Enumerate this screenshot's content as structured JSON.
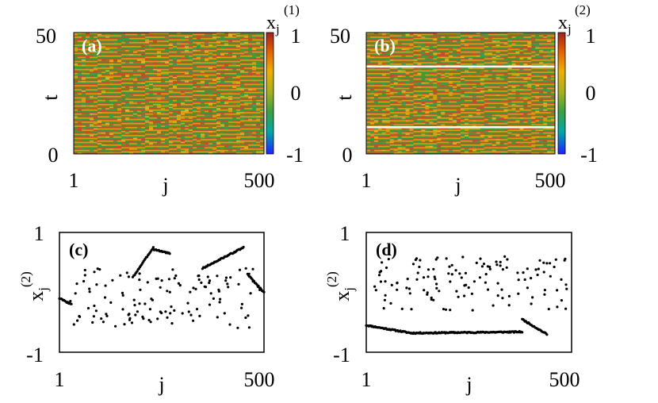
{
  "chart_data": [
    {
      "type": "heatmap",
      "panel_label": "(a)",
      "xlabel": "j",
      "ylabel": "t",
      "xlim": [
        1,
        500
      ],
      "ylim": [
        0,
        50
      ],
      "x_ticks": [
        "1",
        "500"
      ],
      "y_ticks": [
        "0",
        "50"
      ],
      "colorbar": {
        "label": "x",
        "subscript": "j",
        "superscript": "(1)",
        "range": [
          -1,
          1
        ],
        "ticks": [
          "1",
          "0",
          "-1"
        ],
        "colors": [
          "#2020ff",
          "#00a8a8",
          "#3ca040",
          "#a0b020",
          "#f0b000",
          "#e06000",
          "#a02020"
        ]
      },
      "white_lines_t": []
    },
    {
      "type": "heatmap",
      "panel_label": "(b)",
      "xlabel": "j",
      "ylabel": "t",
      "xlim": [
        1,
        500
      ],
      "ylim": [
        0,
        50
      ],
      "x_ticks": [
        "1",
        "500"
      ],
      "y_ticks": [
        "0",
        "50"
      ],
      "colorbar": {
        "label": "x",
        "subscript": "j",
        "superscript": "(2)",
        "range": [
          -1,
          1
        ],
        "ticks": [
          "1",
          "0",
          "-1"
        ],
        "colors": [
          "#2020ff",
          "#00a8a8",
          "#3ca040",
          "#a0b020",
          "#f0b000",
          "#e06000",
          "#a02020"
        ]
      },
      "white_lines_t": [
        11,
        36
      ]
    },
    {
      "type": "scatter",
      "panel_label": "(c)",
      "xlabel": "j",
      "ylabel": "x",
      "ylabel_sub": "j",
      "ylabel_sup": "(2)",
      "xlim": [
        1,
        500
      ],
      "ylim": [
        -1,
        1
      ],
      "x_ticks": [
        "1",
        "500"
      ],
      "y_ticks": [
        "1",
        "-1"
      ],
      "segments": [
        {
          "x0": 1,
          "x1": 30,
          "y0": -0.1,
          "y1": -0.2
        },
        {
          "x0": 180,
          "x1": 230,
          "y0": 0.25,
          "y1": 0.75
        },
        {
          "x0": 230,
          "x1": 270,
          "y0": 0.72,
          "y1": 0.65
        },
        {
          "x0": 350,
          "x1": 450,
          "y0": 0.4,
          "y1": 0.75
        },
        {
          "x0": 460,
          "x1": 500,
          "y0": 0.3,
          "y1": 0.0
        }
      ],
      "scatter_y_range": [
        -0.6,
        0.4
      ]
    },
    {
      "type": "scatter",
      "panel_label": "(d)",
      "xlabel": "j",
      "ylabel": "x",
      "ylabel_sub": "j",
      "ylabel_sup": "(2)",
      "xlim": [
        1,
        500
      ],
      "ylim": [
        -1,
        1
      ],
      "x_ticks": [
        "1",
        "500"
      ],
      "y_ticks": [
        "1",
        "-1"
      ],
      "segments": [
        {
          "x0": 1,
          "x1": 110,
          "y0": -0.55,
          "y1": -0.68
        },
        {
          "x0": 110,
          "x1": 380,
          "y0": -0.68,
          "y1": -0.66
        },
        {
          "x0": 380,
          "x1": 440,
          "y0": -0.45,
          "y1": -0.7
        }
      ],
      "scatter_y_range": [
        -0.3,
        0.6
      ]
    }
  ]
}
